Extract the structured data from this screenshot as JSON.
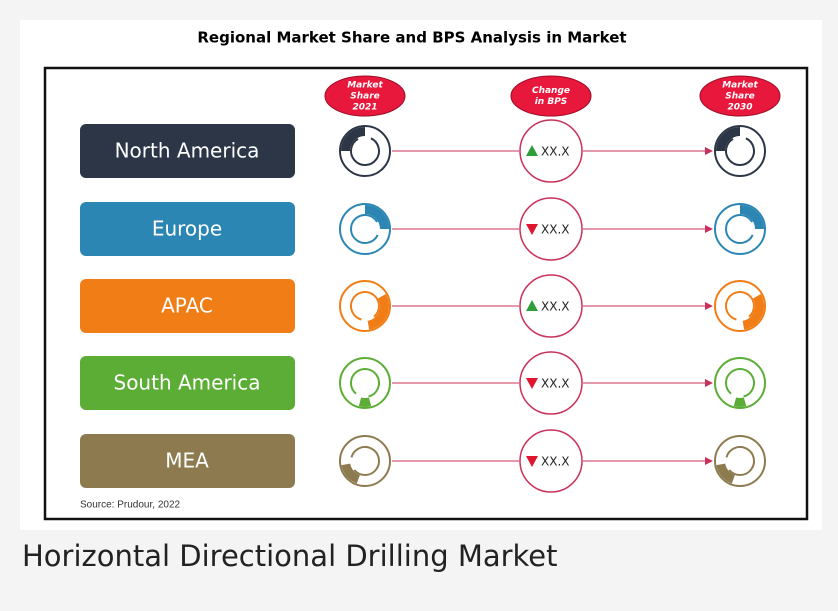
{
  "header": {
    "title": "Regional Market Share and BPS Analysis in Market"
  },
  "columns": [
    {
      "lines": [
        "Market",
        "Share",
        "2021"
      ]
    },
    {
      "lines": [
        "Change",
        "in BPS"
      ]
    },
    {
      "lines": [
        "Market",
        "Share",
        "2030"
      ]
    }
  ],
  "rows": [
    {
      "region": "North America",
      "color": "#2c3646",
      "change": "XX.X",
      "trend": "up"
    },
    {
      "region": "Europe",
      "color": "#2b86b4",
      "change": "XX.X",
      "trend": "down"
    },
    {
      "region": "APAC",
      "color": "#f07d16",
      "change": "XX.X",
      "trend": "up"
    },
    {
      "region": "South America",
      "color": "#5cad36",
      "change": "XX.X",
      "trend": "down"
    },
    {
      "region": "MEA",
      "color": "#8d7b4f",
      "change": "XX.X",
      "trend": "down"
    }
  ],
  "source": "Source: Prudour, 2022",
  "caption": "Horizontal Directional Drilling Market"
}
